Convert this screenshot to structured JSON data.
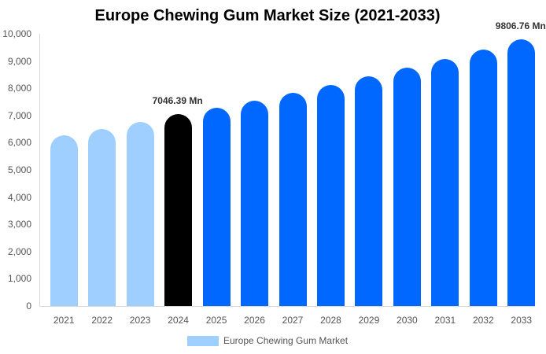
{
  "chart_data": {
    "type": "bar",
    "title": "Europe Chewing Gum Market Size (2021-2033)",
    "xlabel": "",
    "ylabel": "",
    "ylim": [
      0,
      10000
    ],
    "yticks": [
      "0",
      "1,000",
      "2,000",
      "3,000",
      "4,000",
      "5,000",
      "6,000",
      "7,000",
      "8,000",
      "9,000",
      "10,000"
    ],
    "categories": [
      "2021",
      "2022",
      "2023",
      "2024",
      "2025",
      "2026",
      "2027",
      "2028",
      "2029",
      "2030",
      "2031",
      "2032",
      "2033"
    ],
    "series": [
      {
        "name": "Europe Chewing Gum Market",
        "values": [
          6270,
          6500,
          6750,
          7046.39,
          7280,
          7550,
          7830,
          8120,
          8440,
          8760,
          9080,
          9420,
          9806.76
        ]
      }
    ],
    "bar_colors": [
      "#9ecfff",
      "#9ecfff",
      "#9ecfff",
      "#000000",
      "#0068ff",
      "#0068ff",
      "#0068ff",
      "#0068ff",
      "#0068ff",
      "#0068ff",
      "#0068ff",
      "#0068ff",
      "#0068ff"
    ],
    "annotations": [
      {
        "category": "2024",
        "text": "7046.39 Mn"
      },
      {
        "category": "2033",
        "text": "9806.76 Mn"
      }
    ],
    "legend": {
      "position": "bottom",
      "entries": [
        {
          "label": "Europe Chewing Gum Market",
          "color": "#9ecfff"
        }
      ]
    },
    "grid": false
  }
}
